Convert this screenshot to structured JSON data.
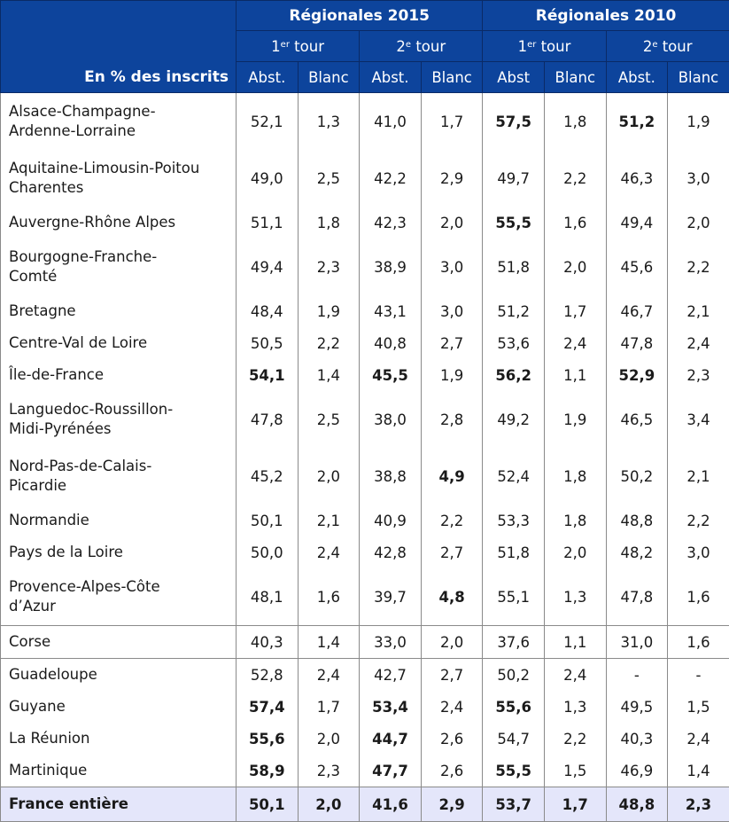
{
  "header": {
    "corner_label": "En % des inscrits",
    "groups": [
      {
        "label": "Régionales 2015",
        "rounds": [
          {
            "num": "1",
            "sup": "er",
            "text": " tour"
          },
          {
            "num": "2",
            "sup": "e",
            "text": " tour"
          }
        ]
      },
      {
        "label": "Régionales 2010",
        "rounds": [
          {
            "num": "1",
            "sup": "er",
            "text": " tour"
          },
          {
            "num": "2",
            "sup": "e",
            "text": " tour"
          }
        ]
      }
    ],
    "subcols": [
      "Abst.",
      "Blanc",
      "Abst.",
      "Blanc",
      "Abst",
      "Blanc",
      "Abst.",
      "Blanc"
    ]
  },
  "rows": [
    {
      "name": "Alsace-Champagne-\nArdenne-Lorraine",
      "values": [
        "52,1",
        "1,3",
        "41,0",
        "1,7",
        "57,5",
        "1,8",
        "51,2",
        "1,9"
      ],
      "bold": [
        4,
        6
      ],
      "lines": 2
    },
    {
      "name": "Aquitaine-Limousin-Poitou\nCharentes",
      "values": [
        "49,0",
        "2,5",
        "42,2",
        "2,9",
        "49,7",
        "2,2",
        "46,3",
        "3,0"
      ],
      "bold": [],
      "lines": 2
    },
    {
      "name": "Auvergne-Rhône Alpes",
      "values": [
        "51,1",
        "1,8",
        "42,3",
        "2,0",
        "55,5",
        "1,6",
        "49,4",
        "2,0"
      ],
      "bold": [
        4
      ],
      "lines": 1
    },
    {
      "name": "Bourgogne-Franche-\nComté",
      "values": [
        "49,4",
        "2,3",
        "38,9",
        "3,0",
        "51,8",
        "2,0",
        "45,6",
        "2,2"
      ],
      "bold": [],
      "lines": 2
    },
    {
      "name": "Bretagne",
      "values": [
        "48,4",
        "1,9",
        "43,1",
        "3,0",
        "51,2",
        "1,7",
        "46,7",
        "2,1"
      ],
      "bold": [],
      "lines": 1
    },
    {
      "name": "Centre-Val de Loire",
      "values": [
        "50,5",
        "2,2",
        "40,8",
        "2,7",
        "53,6",
        "2,4",
        "47,8",
        "2,4"
      ],
      "bold": [],
      "lines": 1
    },
    {
      "name": "Île-de-France",
      "values": [
        "54,1",
        "1,4",
        "45,5",
        "1,9",
        "56,2",
        "1,1",
        "52,9",
        "2,3"
      ],
      "bold": [
        0,
        2,
        4,
        6
      ],
      "lines": 1
    },
    {
      "name": "Languedoc-Roussillon-\nMidi-Pyrénées",
      "values": [
        "47,8",
        "2,5",
        "38,0",
        "2,8",
        "49,2",
        "1,9",
        "46,5",
        "3,4"
      ],
      "bold": [],
      "lines": 2
    },
    {
      "name": "Nord-Pas-de-Calais-\nPicardie",
      "values": [
        "45,2",
        "2,0",
        "38,8",
        "4,9",
        "52,4",
        "1,8",
        "50,2",
        "2,1"
      ],
      "bold": [
        3
      ],
      "lines": 2
    },
    {
      "name": "Normandie",
      "values": [
        "50,1",
        "2,1",
        "40,9",
        "2,2",
        "53,3",
        "1,8",
        "48,8",
        "2,2"
      ],
      "bold": [],
      "lines": 1
    },
    {
      "name": "Pays de la Loire",
      "values": [
        "50,0",
        "2,4",
        "42,8",
        "2,7",
        "51,8",
        "2,0",
        "48,2",
        "3,0"
      ],
      "bold": [],
      "lines": 1
    },
    {
      "name": "Provence-Alpes-Côte\nd’Azur",
      "values": [
        "48,1",
        "1,6",
        "39,7",
        "4,8",
        "55,1",
        "1,3",
        "47,8",
        "1,6"
      ],
      "bold": [
        3
      ],
      "lines": 2
    },
    {
      "name": "Corse",
      "values": [
        "40,3",
        "1,4",
        "33,0",
        "2,0",
        "37,6",
        "1,1",
        "31,0",
        "1,6"
      ],
      "bold": [],
      "lines": 1,
      "sep": true
    },
    {
      "name": "Guadeloupe",
      "values": [
        "52,8",
        "2,4",
        "42,7",
        "2,7",
        "50,2",
        "2,4",
        "-",
        "-"
      ],
      "bold": [],
      "lines": 1,
      "sep": true
    },
    {
      "name": "Guyane",
      "values": [
        "57,4",
        "1,7",
        "53,4",
        "2,4",
        "55,6",
        "1,3",
        "49,5",
        "1,5"
      ],
      "bold": [
        0,
        2,
        4
      ],
      "lines": 1
    },
    {
      "name": "La Réunion",
      "values": [
        "55,6",
        "2,0",
        "44,7",
        "2,6",
        "54,7",
        "2,2",
        "40,3",
        "2,4"
      ],
      "bold": [
        0,
        2
      ],
      "lines": 1
    },
    {
      "name": "Martinique",
      "values": [
        "58,9",
        "2,3",
        "47,7",
        "2,6",
        "55,5",
        "1,5",
        "46,9",
        "1,4"
      ],
      "bold": [
        0,
        2,
        4
      ],
      "lines": 1
    }
  ],
  "total": {
    "name": "France entière",
    "values": [
      "50,1",
      "2,0",
      "41,6",
      "2,9",
      "53,7",
      "1,7",
      "48,8",
      "2,3"
    ]
  },
  "colors": {
    "header_bg": "#0d449c",
    "total_bg": "#e4e6fa",
    "grid": "#8a8a8a"
  }
}
